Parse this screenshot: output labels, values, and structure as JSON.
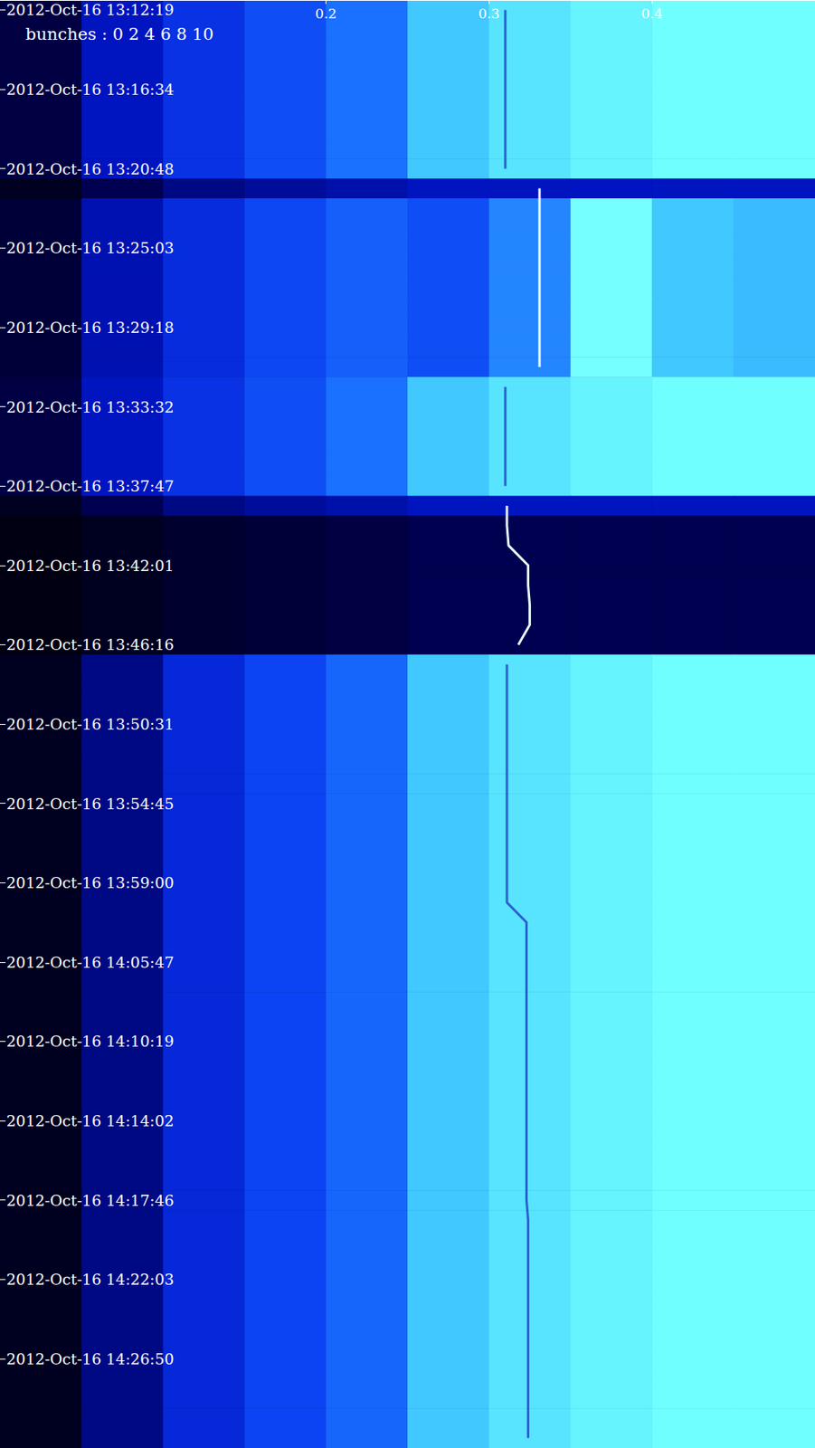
{
  "chart_data": {
    "type": "heatmap",
    "annotations": [
      "bunches : 0 2 4 6 8 10"
    ],
    "xlim": [
      0,
      0.5
    ],
    "xticks": [
      0.2,
      0.3,
      0.4
    ],
    "grid": false,
    "categories": [
      "2012-Oct-16 13:12:19",
      null,
      null,
      null,
      "2012-Oct-16 13:16:34",
      null,
      null,
      null,
      "2012-Oct-16 13:20:48",
      null,
      null,
      null,
      "2012-Oct-16 13:25:03",
      null,
      null,
      null,
      "2012-Oct-16 13:29:18",
      null,
      null,
      null,
      "2012-Oct-16 13:33:32",
      null,
      null,
      null,
      "2012-Oct-16 13:37:47",
      null,
      null,
      null,
      "2012-Oct-16 13:42:01",
      null,
      null,
      null,
      "2012-Oct-16 13:46:16",
      null,
      null,
      null,
      "2012-Oct-16 13:50:31",
      null,
      null,
      null,
      "2012-Oct-16 13:54:45",
      null,
      null,
      null,
      "2012-Oct-16 13:59:00",
      null,
      null,
      null,
      "2012-Oct-16 14:05:47",
      null,
      null,
      null,
      "2012-Oct-16 14:10:19",
      null,
      null,
      null,
      "2012-Oct-16 14:14:02",
      null,
      null,
      null,
      "2012-Oct-16 14:17:46",
      null,
      null,
      null,
      "2012-Oct-16 14:22:03",
      null,
      null,
      null,
      "2012-Oct-16 14:26:50",
      null,
      null,
      null,
      null
    ],
    "x_bins": [
      0,
      0.05,
      0.1,
      0.15,
      0.2,
      0.25,
      0.3,
      0.35,
      0.4,
      0.45,
      0.5
    ],
    "intensity_range": [
      0,
      1
    ],
    "cells": [
      [
        0.12,
        0.3,
        0.45,
        0.55,
        0.65,
        0.85,
        0.9,
        0.93,
        0.95,
        0.95
      ],
      [
        0.12,
        0.3,
        0.45,
        0.55,
        0.65,
        0.85,
        0.9,
        0.93,
        0.95,
        0.95
      ],
      [
        0.12,
        0.3,
        0.45,
        0.55,
        0.65,
        0.85,
        0.9,
        0.93,
        0.95,
        0.95
      ],
      [
        0.12,
        0.3,
        0.45,
        0.55,
        0.65,
        0.85,
        0.9,
        0.93,
        0.95,
        0.95
      ],
      [
        0.12,
        0.3,
        0.45,
        0.55,
        0.65,
        0.85,
        0.9,
        0.93,
        0.95,
        0.95
      ],
      [
        0.12,
        0.3,
        0.45,
        0.55,
        0.65,
        0.85,
        0.9,
        0.93,
        0.95,
        0.95
      ],
      [
        0.12,
        0.3,
        0.45,
        0.55,
        0.65,
        0.85,
        0.9,
        0.93,
        0.95,
        0.95
      ],
      [
        0.12,
        0.3,
        0.45,
        0.55,
        0.65,
        0.85,
        0.9,
        0.93,
        0.95,
        0.95
      ],
      [
        0.12,
        0.3,
        0.45,
        0.55,
        0.65,
        0.85,
        0.9,
        0.93,
        0.95,
        0.95
      ],
      [
        0.05,
        0.15,
        0.22,
        0.25,
        0.27,
        0.3,
        0.3,
        0.3,
        0.3,
        0.3
      ],
      [
        0.1,
        0.28,
        0.42,
        0.53,
        0.6,
        0.55,
        0.7,
        0.96,
        0.85,
        0.82
      ],
      [
        0.1,
        0.28,
        0.42,
        0.53,
        0.6,
        0.55,
        0.7,
        0.96,
        0.85,
        0.82
      ],
      [
        0.1,
        0.28,
        0.42,
        0.53,
        0.6,
        0.55,
        0.7,
        0.96,
        0.85,
        0.82
      ],
      [
        0.1,
        0.28,
        0.42,
        0.53,
        0.6,
        0.55,
        0.7,
        0.96,
        0.85,
        0.82
      ],
      [
        0.1,
        0.28,
        0.42,
        0.53,
        0.6,
        0.55,
        0.7,
        0.96,
        0.85,
        0.82
      ],
      [
        0.1,
        0.28,
        0.42,
        0.53,
        0.6,
        0.55,
        0.7,
        0.96,
        0.85,
        0.82
      ],
      [
        0.1,
        0.28,
        0.42,
        0.53,
        0.6,
        0.55,
        0.7,
        0.96,
        0.85,
        0.82
      ],
      [
        0.1,
        0.28,
        0.42,
        0.53,
        0.6,
        0.55,
        0.7,
        0.96,
        0.85,
        0.82
      ],
      [
        0.1,
        0.28,
        0.42,
        0.53,
        0.6,
        0.55,
        0.7,
        0.96,
        0.85,
        0.82
      ],
      [
        0.12,
        0.3,
        0.45,
        0.55,
        0.65,
        0.85,
        0.9,
        0.93,
        0.95,
        0.95
      ],
      [
        0.12,
        0.3,
        0.45,
        0.55,
        0.65,
        0.85,
        0.9,
        0.93,
        0.95,
        0.95
      ],
      [
        0.12,
        0.3,
        0.45,
        0.55,
        0.65,
        0.85,
        0.9,
        0.93,
        0.95,
        0.95
      ],
      [
        0.12,
        0.3,
        0.45,
        0.55,
        0.65,
        0.85,
        0.9,
        0.93,
        0.95,
        0.95
      ],
      [
        0.12,
        0.3,
        0.45,
        0.55,
        0.65,
        0.85,
        0.9,
        0.93,
        0.95,
        0.95
      ],
      [
        0.12,
        0.3,
        0.45,
        0.55,
        0.65,
        0.85,
        0.9,
        0.93,
        0.95,
        0.95
      ],
      [
        0.05,
        0.15,
        0.22,
        0.25,
        0.27,
        0.3,
        0.3,
        0.3,
        0.3,
        0.3
      ],
      [
        0.02,
        0.05,
        0.08,
        0.1,
        0.12,
        0.15,
        0.15,
        0.15,
        0.15,
        0.15
      ],
      [
        0.02,
        0.05,
        0.08,
        0.1,
        0.12,
        0.15,
        0.15,
        0.15,
        0.15,
        0.15
      ],
      [
        0.02,
        0.05,
        0.08,
        0.1,
        0.12,
        0.15,
        0.15,
        0.15,
        0.15,
        0.15
      ],
      [
        0.02,
        0.05,
        0.08,
        0.1,
        0.12,
        0.15,
        0.15,
        0.15,
        0.15,
        0.15
      ],
      [
        0.02,
        0.05,
        0.08,
        0.1,
        0.12,
        0.15,
        0.15,
        0.15,
        0.15,
        0.15
      ],
      [
        0.02,
        0.05,
        0.08,
        0.1,
        0.12,
        0.15,
        0.15,
        0.15,
        0.15,
        0.15
      ],
      [
        0.02,
        0.05,
        0.08,
        0.1,
        0.12,
        0.15,
        0.15,
        0.15,
        0.15,
        0.15
      ],
      [
        0.05,
        0.22,
        0.4,
        0.52,
        0.62,
        0.85,
        0.9,
        0.93,
        0.95,
        0.95
      ],
      [
        0.05,
        0.22,
        0.4,
        0.52,
        0.62,
        0.85,
        0.9,
        0.93,
        0.95,
        0.95
      ],
      [
        0.05,
        0.22,
        0.4,
        0.52,
        0.62,
        0.85,
        0.9,
        0.93,
        0.95,
        0.95
      ],
      [
        0.05,
        0.22,
        0.4,
        0.52,
        0.62,
        0.85,
        0.9,
        0.93,
        0.95,
        0.95
      ],
      [
        0.05,
        0.22,
        0.4,
        0.52,
        0.62,
        0.85,
        0.9,
        0.93,
        0.95,
        0.95
      ],
      [
        0.05,
        0.22,
        0.4,
        0.52,
        0.62,
        0.85,
        0.9,
        0.93,
        0.95,
        0.95
      ],
      [
        0.05,
        0.22,
        0.4,
        0.52,
        0.62,
        0.85,
        0.9,
        0.93,
        0.95,
        0.95
      ],
      [
        0.05,
        0.22,
        0.4,
        0.52,
        0.62,
        0.85,
        0.9,
        0.93,
        0.95,
        0.95
      ],
      [
        0.05,
        0.22,
        0.4,
        0.52,
        0.62,
        0.85,
        0.9,
        0.93,
        0.95,
        0.95
      ],
      [
        0.05,
        0.22,
        0.4,
        0.52,
        0.62,
        0.85,
        0.9,
        0.93,
        0.95,
        0.95
      ],
      [
        0.05,
        0.22,
        0.4,
        0.52,
        0.62,
        0.85,
        0.9,
        0.93,
        0.95,
        0.95
      ],
      [
        0.05,
        0.22,
        0.4,
        0.52,
        0.62,
        0.85,
        0.9,
        0.93,
        0.95,
        0.95
      ],
      [
        0.05,
        0.22,
        0.4,
        0.52,
        0.62,
        0.85,
        0.9,
        0.93,
        0.95,
        0.95
      ],
      [
        0.05,
        0.22,
        0.4,
        0.52,
        0.62,
        0.85,
        0.9,
        0.93,
        0.95,
        0.95
      ],
      [
        0.05,
        0.22,
        0.4,
        0.52,
        0.62,
        0.85,
        0.9,
        0.93,
        0.95,
        0.95
      ],
      [
        0.05,
        0.22,
        0.4,
        0.52,
        0.62,
        0.85,
        0.9,
        0.93,
        0.95,
        0.95
      ],
      [
        0.05,
        0.22,
        0.4,
        0.52,
        0.62,
        0.85,
        0.9,
        0.93,
        0.95,
        0.95
      ],
      [
        0.05,
        0.22,
        0.4,
        0.52,
        0.62,
        0.85,
        0.9,
        0.93,
        0.95,
        0.95
      ],
      [
        0.05,
        0.22,
        0.4,
        0.52,
        0.62,
        0.85,
        0.9,
        0.93,
        0.95,
        0.95
      ],
      [
        0.05,
        0.22,
        0.4,
        0.52,
        0.62,
        0.85,
        0.9,
        0.93,
        0.95,
        0.95
      ],
      [
        0.05,
        0.22,
        0.4,
        0.52,
        0.62,
        0.85,
        0.9,
        0.93,
        0.95,
        0.95
      ],
      [
        0.05,
        0.22,
        0.4,
        0.52,
        0.62,
        0.85,
        0.9,
        0.93,
        0.95,
        0.95
      ],
      [
        0.05,
        0.22,
        0.4,
        0.52,
        0.62,
        0.85,
        0.9,
        0.93,
        0.95,
        0.95
      ],
      [
        0.05,
        0.22,
        0.4,
        0.52,
        0.62,
        0.85,
        0.9,
        0.93,
        0.95,
        0.95
      ],
      [
        0.05,
        0.22,
        0.4,
        0.52,
        0.62,
        0.85,
        0.9,
        0.93,
        0.95,
        0.95
      ],
      [
        0.05,
        0.22,
        0.4,
        0.52,
        0.62,
        0.85,
        0.9,
        0.93,
        0.95,
        0.95
      ],
      [
        0.05,
        0.22,
        0.4,
        0.52,
        0.62,
        0.85,
        0.9,
        0.93,
        0.95,
        0.95
      ],
      [
        0.05,
        0.22,
        0.4,
        0.52,
        0.62,
        0.85,
        0.9,
        0.93,
        0.95,
        0.95
      ],
      [
        0.05,
        0.22,
        0.4,
        0.52,
        0.62,
        0.85,
        0.9,
        0.93,
        0.95,
        0.95
      ],
      [
        0.05,
        0.22,
        0.4,
        0.52,
        0.62,
        0.85,
        0.9,
        0.93,
        0.95,
        0.95
      ],
      [
        0.05,
        0.22,
        0.4,
        0.52,
        0.62,
        0.85,
        0.9,
        0.93,
        0.95,
        0.95
      ],
      [
        0.05,
        0.22,
        0.4,
        0.52,
        0.62,
        0.85,
        0.9,
        0.93,
        0.95,
        0.95
      ],
      [
        0.05,
        0.22,
        0.4,
        0.52,
        0.62,
        0.85,
        0.9,
        0.93,
        0.95,
        0.95
      ],
      [
        0.05,
        0.22,
        0.4,
        0.52,
        0.62,
        0.85,
        0.9,
        0.93,
        0.95,
        0.95
      ],
      [
        0.05,
        0.22,
        0.4,
        0.52,
        0.62,
        0.85,
        0.9,
        0.93,
        0.95,
        0.95
      ],
      [
        0.05,
        0.22,
        0.4,
        0.52,
        0.62,
        0.85,
        0.9,
        0.93,
        0.95,
        0.95
      ],
      [
        0.05,
        0.22,
        0.4,
        0.52,
        0.62,
        0.85,
        0.9,
        0.93,
        0.95,
        0.95
      ],
      [
        0.05,
        0.22,
        0.4,
        0.52,
        0.62,
        0.85,
        0.9,
        0.93,
        0.95,
        0.95
      ],
      [
        0.05,
        0.22,
        0.4,
        0.52,
        0.62,
        0.85,
        0.9,
        0.93,
        0.95,
        0.95
      ],
      [
        0.05,
        0.22,
        0.4,
        0.52,
        0.62,
        0.85,
        0.9,
        0.93,
        0.95,
        0.95
      ]
    ],
    "series": [
      {
        "type": "line",
        "color": "#e8ffff",
        "marker": "none",
        "values": [
          null,
          null,
          null,
          null,
          null,
          null,
          null,
          null,
          null,
          0.331,
          0.331,
          0.331,
          0.331,
          0.331,
          0.331,
          0.331,
          0.331,
          0.331,
          0.331,
          null,
          null,
          null,
          null,
          null,
          null,
          0.311,
          0.311,
          0.312,
          0.324,
          0.324,
          0.325,
          0.325,
          0.318,
          null,
          null,
          null,
          null,
          null,
          null,
          null,
          null,
          null,
          null,
          null,
          null,
          null,
          null,
          null,
          null,
          null,
          null,
          null,
          null,
          null,
          null,
          null,
          null,
          null,
          null,
          null,
          null,
          null,
          null,
          null,
          null,
          null,
          null,
          null,
          null,
          null,
          null,
          null,
          null
        ]
      },
      {
        "type": "line",
        "color": "#2a5fd0",
        "marker": "none",
        "values": [
          0.31,
          0.31,
          0.31,
          0.31,
          0.31,
          0.31,
          0.31,
          0.31,
          0.31,
          null,
          null,
          null,
          null,
          null,
          null,
          null,
          null,
          null,
          null,
          0.31,
          0.31,
          0.31,
          0.31,
          0.31,
          0.31,
          null,
          null,
          null,
          null,
          null,
          null,
          null,
          null,
          0.311,
          0.311,
          0.311,
          0.311,
          0.311,
          0.311,
          0.311,
          0.311,
          0.311,
          0.311,
          0.311,
          0.311,
          0.311,
          0.323,
          0.323,
          0.323,
          0.323,
          0.323,
          0.323,
          0.323,
          0.323,
          0.323,
          0.323,
          0.323,
          0.323,
          0.323,
          0.323,
          0.323,
          0.324,
          0.324,
          0.324,
          0.324,
          0.324,
          0.324,
          0.324,
          0.324,
          0.324,
          0.324,
          0.324,
          0.324
        ]
      }
    ]
  }
}
